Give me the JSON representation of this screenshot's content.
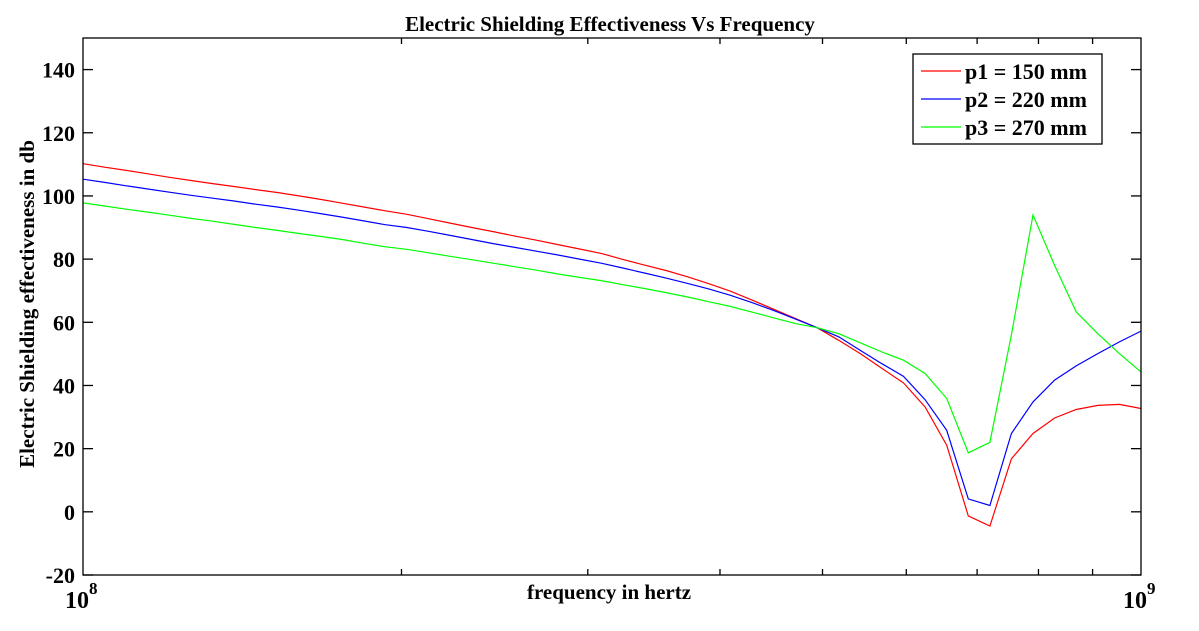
{
  "chart_data": {
    "type": "line",
    "title": "Electric Shielding Effectiveness Vs Frequency",
    "xlabel": "frequency in hertz",
    "ylabel": "Electric Shielding effectiveness in db",
    "xscale": "log",
    "xlim": [
      100000000,
      1000000000
    ],
    "ylim": [
      -20,
      150
    ],
    "x_tick_labels": [
      {
        "base": "10",
        "exp": "8",
        "value": 100000000
      },
      {
        "base": "10",
        "exp": "9",
        "value": 1000000000
      }
    ],
    "y_ticks": [
      -20,
      0,
      20,
      40,
      60,
      80,
      100,
      120,
      140
    ],
    "y_tick_labels": [
      "-20",
      "0",
      "20",
      "40",
      "60",
      "80",
      "100",
      "120",
      "140"
    ],
    "grid": false,
    "legend_position": "top-right",
    "n_points": 50,
    "x_note": "50 logarithmically spaced frequencies from 1e8 to 1e9 Hz",
    "series": [
      {
        "name": "p1 = 150 mm",
        "color": "#ff0000",
        "values": [
          110.2,
          109.1,
          108.1,
          107.0,
          105.9,
          104.9,
          103.9,
          103.0,
          102.0,
          101.1,
          100.0,
          98.9,
          97.7,
          96.5,
          95.3,
          94.2,
          92.8,
          91.4,
          90.0,
          88.7,
          87.3,
          86.0,
          84.6,
          83.2,
          81.8,
          79.9,
          78.1,
          76.4,
          74.4,
          72.2,
          69.8,
          67.0,
          64.1,
          61.2,
          58.3,
          54.3,
          50.1,
          45.4,
          40.8,
          33.2,
          21.1,
          -1.3,
          -4.5,
          16.8,
          24.8,
          29.7,
          32.4,
          33.7,
          34.0,
          32.7
        ]
      },
      {
        "name": "p2 = 220 mm",
        "color": "#0000ff",
        "values": [
          105.3,
          104.3,
          103.2,
          102.2,
          101.2,
          100.2,
          99.3,
          98.4,
          97.4,
          96.5,
          95.5,
          94.4,
          93.3,
          92.1,
          90.9,
          90.0,
          88.8,
          87.5,
          86.2,
          84.9,
          83.7,
          82.5,
          81.3,
          80.0,
          78.7,
          77.2,
          75.6,
          74.0,
          72.3,
          70.5,
          68.5,
          66.2,
          63.7,
          61.0,
          58.3,
          55.4,
          51.1,
          46.9,
          42.9,
          35.5,
          25.8,
          4.1,
          2.0,
          24.8,
          34.8,
          41.7,
          46.2,
          50.1,
          53.8,
          57.2
        ]
      },
      {
        "name": "p3 = 270 mm",
        "color": "#00ff00",
        "values": [
          97.8,
          96.8,
          95.8,
          94.9,
          93.9,
          92.9,
          92.0,
          91.0,
          90.0,
          89.1,
          88.1,
          87.2,
          86.2,
          85.0,
          83.9,
          83.1,
          82.0,
          80.9,
          79.8,
          78.7,
          77.6,
          76.5,
          75.3,
          74.2,
          73.2,
          71.9,
          70.7,
          69.4,
          68.0,
          66.5,
          65.0,
          63.2,
          61.4,
          59.6,
          58.3,
          56.4,
          53.5,
          50.6,
          48.0,
          43.8,
          35.9,
          18.7,
          22.0,
          56.0,
          94.0,
          78.0,
          63.3,
          56.4,
          50.1,
          44.3
        ]
      }
    ]
  }
}
